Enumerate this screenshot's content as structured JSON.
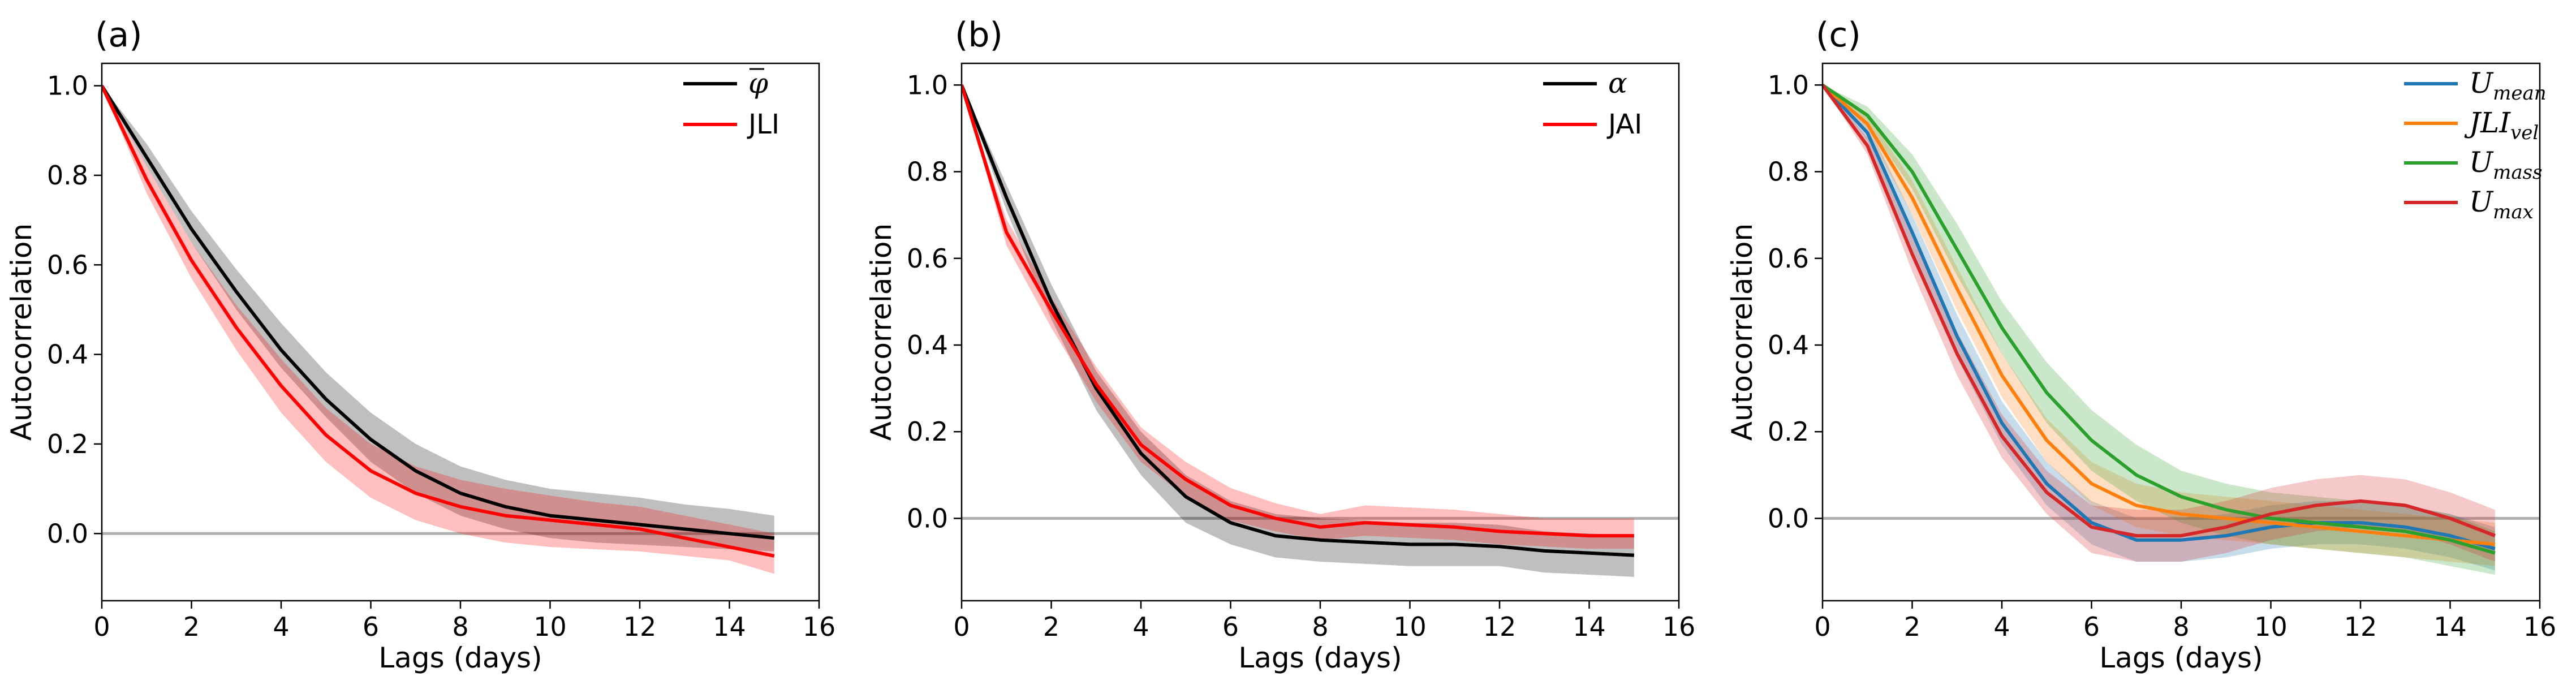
{
  "chart_data": [
    {
      "panel": "(a)",
      "type": "line",
      "xlabel": "Lags (days)",
      "ylabel": "Autocorrelation",
      "xlim": [
        0,
        16
      ],
      "ylim": [
        -0.15,
        1.05
      ],
      "xticks": [
        0,
        2,
        4,
        6,
        8,
        10,
        12,
        14,
        16
      ],
      "yticks": [
        0.0,
        0.2,
        0.4,
        0.6,
        0.8,
        1.0
      ],
      "reference_line_y": 0,
      "legend_position": "top-right",
      "x": [
        0,
        1,
        2,
        3,
        4,
        5,
        6,
        7,
        8,
        9,
        10,
        11,
        12,
        13,
        14,
        15
      ],
      "series": [
        {
          "name": "φ̄",
          "legend_main": "φ",
          "legend_bar": true,
          "color": "#000000",
          "values": [
            1.0,
            0.84,
            0.68,
            0.54,
            0.41,
            0.3,
            0.21,
            0.14,
            0.09,
            0.06,
            0.04,
            0.03,
            0.02,
            0.01,
            0.0,
            -0.01
          ],
          "lower": [
            1.0,
            0.82,
            0.65,
            0.5,
            0.37,
            0.26,
            0.16,
            0.09,
            0.04,
            0.01,
            -0.01,
            -0.02,
            -0.025,
            -0.03,
            -0.035,
            -0.04
          ],
          "upper": [
            1.0,
            0.87,
            0.72,
            0.59,
            0.47,
            0.36,
            0.27,
            0.2,
            0.15,
            0.12,
            0.1,
            0.09,
            0.08,
            0.065,
            0.055,
            0.04
          ]
        },
        {
          "name": "JLI",
          "legend_main": "JLI",
          "color": "#ff0000",
          "values": [
            1.0,
            0.79,
            0.61,
            0.46,
            0.33,
            0.22,
            0.14,
            0.09,
            0.06,
            0.04,
            0.03,
            0.02,
            0.01,
            -0.01,
            -0.03,
            -0.05
          ],
          "lower": [
            1.0,
            0.76,
            0.57,
            0.41,
            0.27,
            0.16,
            0.08,
            0.03,
            0.0,
            -0.02,
            -0.03,
            -0.035,
            -0.04,
            -0.05,
            -0.06,
            -0.09
          ],
          "upper": [
            1.0,
            0.82,
            0.65,
            0.51,
            0.39,
            0.28,
            0.2,
            0.15,
            0.12,
            0.1,
            0.085,
            0.07,
            0.06,
            0.04,
            0.02,
            0.0
          ]
        }
      ]
    },
    {
      "panel": "(b)",
      "type": "line",
      "xlabel": "Lags (days)",
      "ylabel": "Autocorrelation",
      "xlim": [
        0,
        16
      ],
      "ylim": [
        -0.19,
        1.05
      ],
      "xticks": [
        0,
        2,
        4,
        6,
        8,
        10,
        12,
        14,
        16
      ],
      "yticks": [
        0.0,
        0.2,
        0.4,
        0.6,
        0.8,
        1.0
      ],
      "reference_line_y": 0,
      "legend_position": "top-right",
      "x": [
        0,
        1,
        2,
        3,
        4,
        5,
        6,
        7,
        8,
        9,
        10,
        11,
        12,
        13,
        14,
        15
      ],
      "series": [
        {
          "name": "α",
          "legend_main": "α",
          "legend_style": "italic",
          "color": "#000000",
          "values": [
            1.0,
            0.74,
            0.5,
            0.3,
            0.15,
            0.05,
            -0.01,
            -0.04,
            -0.05,
            -0.055,
            -0.06,
            -0.06,
            -0.065,
            -0.075,
            -0.08,
            -0.085
          ],
          "lower": [
            1.0,
            0.71,
            0.46,
            0.25,
            0.1,
            -0.01,
            -0.06,
            -0.09,
            -0.1,
            -0.105,
            -0.11,
            -0.11,
            -0.11,
            -0.125,
            -0.13,
            -0.135
          ],
          "upper": [
            1.0,
            0.77,
            0.54,
            0.34,
            0.2,
            0.1,
            0.04,
            0.01,
            0.0,
            -0.005,
            -0.01,
            -0.01,
            -0.015,
            -0.03,
            -0.035,
            -0.04
          ]
        },
        {
          "name": "JAI",
          "legend_main": "JAI",
          "color": "#ff0000",
          "values": [
            1.0,
            0.66,
            0.48,
            0.31,
            0.17,
            0.09,
            0.03,
            0.0,
            -0.02,
            -0.01,
            -0.015,
            -0.02,
            -0.03,
            -0.035,
            -0.04,
            -0.04
          ],
          "lower": [
            1.0,
            0.63,
            0.44,
            0.27,
            0.13,
            0.05,
            -0.005,
            -0.03,
            -0.05,
            -0.04,
            -0.045,
            -0.05,
            -0.06,
            -0.065,
            -0.07,
            -0.07
          ],
          "upper": [
            1.0,
            0.69,
            0.51,
            0.35,
            0.21,
            0.13,
            0.07,
            0.035,
            0.01,
            0.03,
            0.025,
            0.02,
            0.01,
            0.0,
            0.0,
            0.0
          ]
        }
      ]
    },
    {
      "panel": "(c)",
      "type": "line",
      "xlabel": "Lags (days)",
      "ylabel": "Autocorrelation",
      "xlim": [
        0,
        16
      ],
      "ylim": [
        -0.19,
        1.05
      ],
      "xticks": [
        0,
        2,
        4,
        6,
        8,
        10,
        12,
        14,
        16
      ],
      "yticks": [
        0.0,
        0.2,
        0.4,
        0.6,
        0.8,
        1.0
      ],
      "reference_line_y": 0,
      "legend_position": "top-right",
      "x": [
        0,
        1,
        2,
        3,
        4,
        5,
        6,
        7,
        8,
        9,
        10,
        11,
        12,
        13,
        14,
        15
      ],
      "series": [
        {
          "name": "U_mean",
          "legend_main": "U",
          "legend_sub": "mean",
          "color": "#1f77b4",
          "values": [
            1.0,
            0.89,
            0.66,
            0.42,
            0.22,
            0.08,
            -0.01,
            -0.05,
            -0.05,
            -0.04,
            -0.02,
            -0.01,
            -0.01,
            -0.02,
            -0.04,
            -0.07
          ],
          "lower": [
            1.0,
            0.87,
            0.62,
            0.37,
            0.17,
            0.03,
            -0.06,
            -0.1,
            -0.1,
            -0.09,
            -0.07,
            -0.06,
            -0.06,
            -0.07,
            -0.09,
            -0.12
          ],
          "upper": [
            1.0,
            0.91,
            0.7,
            0.47,
            0.27,
            0.13,
            0.04,
            0.0,
            0.0,
            0.01,
            0.03,
            0.04,
            0.04,
            0.03,
            0.01,
            -0.02
          ]
        },
        {
          "name": "JLI_vel",
          "legend_main": "JLI",
          "legend_sub": "vel",
          "color": "#ff7f0e",
          "values": [
            1.0,
            0.91,
            0.74,
            0.53,
            0.33,
            0.18,
            0.08,
            0.03,
            0.01,
            0.0,
            -0.01,
            -0.02,
            -0.03,
            -0.04,
            -0.05,
            -0.06
          ],
          "lower": [
            1.0,
            0.89,
            0.7,
            0.48,
            0.28,
            0.13,
            0.03,
            -0.02,
            -0.04,
            -0.05,
            -0.06,
            -0.07,
            -0.08,
            -0.09,
            -0.1,
            -0.11
          ],
          "upper": [
            1.0,
            0.93,
            0.78,
            0.58,
            0.38,
            0.23,
            0.13,
            0.08,
            0.06,
            0.05,
            0.04,
            0.03,
            0.02,
            0.01,
            0.0,
            -0.01
          ]
        },
        {
          "name": "U_mass",
          "legend_main": "U",
          "legend_sub": "mass",
          "color": "#2ca02c",
          "values": [
            1.0,
            0.93,
            0.8,
            0.62,
            0.44,
            0.29,
            0.18,
            0.1,
            0.05,
            0.02,
            0.0,
            -0.01,
            -0.02,
            -0.03,
            -0.05,
            -0.08
          ],
          "lower": [
            1.0,
            0.91,
            0.76,
            0.56,
            0.38,
            0.22,
            0.11,
            0.04,
            -0.01,
            -0.04,
            -0.06,
            -0.07,
            -0.08,
            -0.09,
            -0.11,
            -0.13
          ],
          "upper": [
            1.0,
            0.95,
            0.84,
            0.68,
            0.5,
            0.36,
            0.25,
            0.17,
            0.11,
            0.08,
            0.06,
            0.05,
            0.04,
            0.03,
            0.01,
            -0.03
          ]
        },
        {
          "name": "U_max",
          "legend_main": "U",
          "legend_sub": "max",
          "color": "#d62728",
          "values": [
            1.0,
            0.86,
            0.61,
            0.38,
            0.19,
            0.06,
            -0.02,
            -0.04,
            -0.04,
            -0.02,
            0.01,
            0.03,
            0.04,
            0.03,
            0.0,
            -0.04
          ],
          "lower": [
            1.0,
            0.84,
            0.57,
            0.33,
            0.14,
            0.01,
            -0.08,
            -0.1,
            -0.1,
            -0.08,
            -0.05,
            -0.03,
            -0.02,
            -0.03,
            -0.06,
            -0.1
          ],
          "upper": [
            1.0,
            0.88,
            0.65,
            0.43,
            0.24,
            0.11,
            0.03,
            0.02,
            0.02,
            0.04,
            0.07,
            0.09,
            0.1,
            0.09,
            0.06,
            0.02
          ]
        }
      ]
    }
  ]
}
